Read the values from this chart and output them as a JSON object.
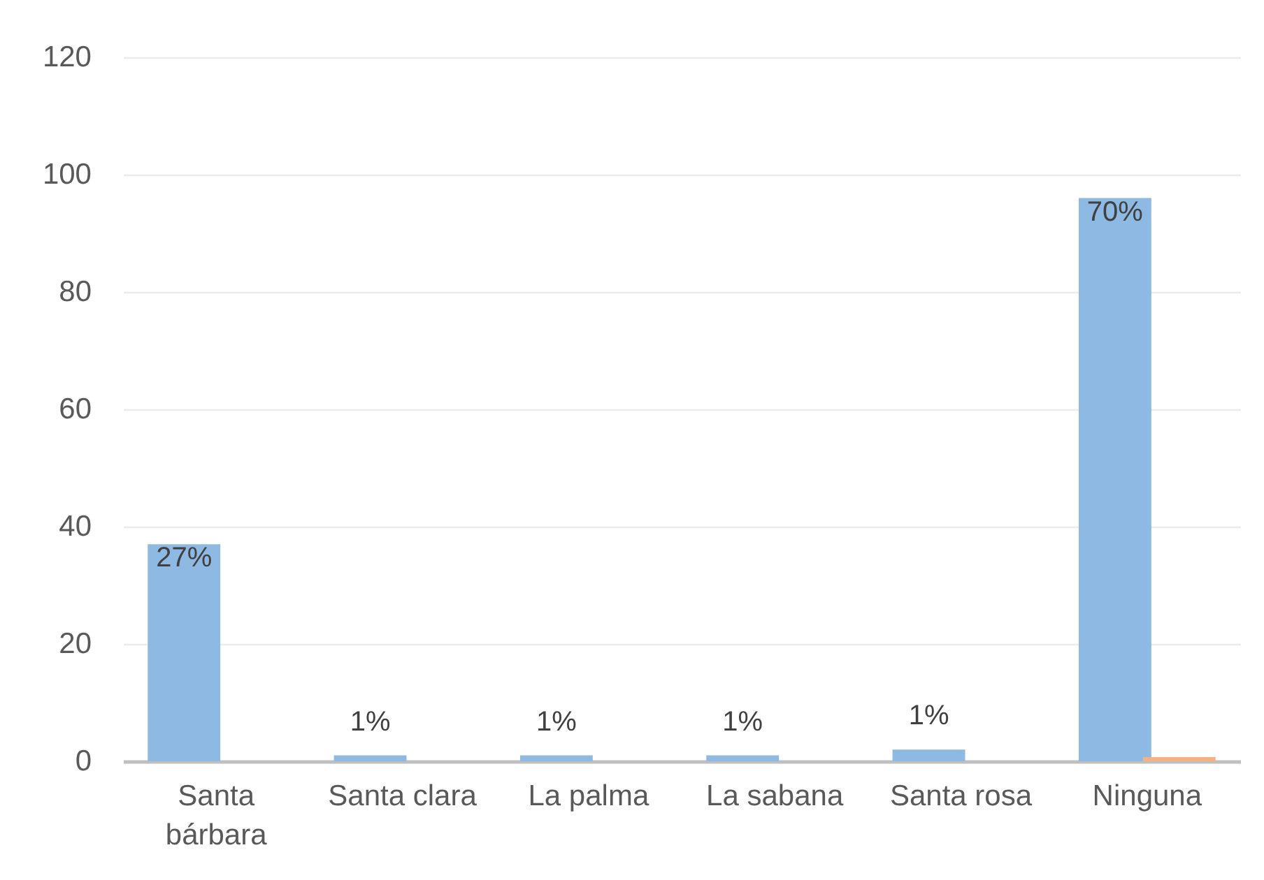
{
  "chart_data": {
    "type": "bar",
    "categories": [
      "Santa bárbara",
      "Santa clara",
      "La palma",
      "La sabana",
      "Santa rosa",
      "Ninguna"
    ],
    "series": [
      {
        "color": "#8db9e2",
        "values": [
          37,
          1,
          1,
          1,
          2,
          96
        ]
      },
      {
        "color": "#f4b183",
        "values": [
          null,
          null,
          null,
          null,
          null,
          0.7
        ]
      }
    ],
    "annotations": [
      {
        "text": "27%",
        "x": "Santa bárbara",
        "y": 37
      },
      {
        "text": "1%",
        "x": "Santa clara",
        "y": 1
      },
      {
        "text": "1%",
        "x": "La palma",
        "y": 1
      },
      {
        "text": "1%",
        "x": "La sabana",
        "y": 1
      },
      {
        "text": "1%",
        "x": "Santa rosa",
        "y": 2
      },
      {
        "text": "70%",
        "x": "Ninguna",
        "y": 96
      }
    ],
    "ylim": [
      0,
      120
    ],
    "yticks": [
      0,
      20,
      40,
      60,
      80,
      100,
      120
    ],
    "grid": "y"
  }
}
